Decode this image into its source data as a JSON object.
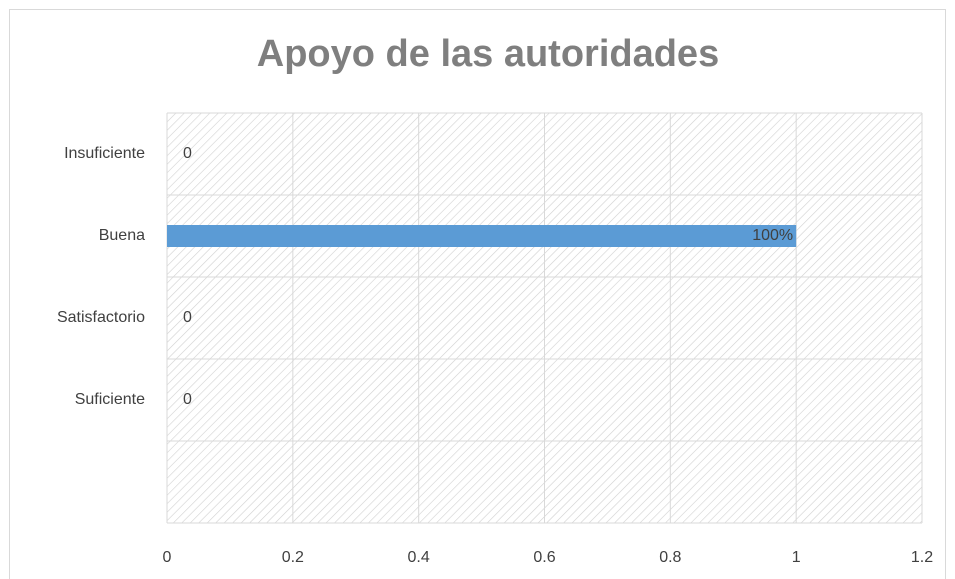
{
  "chart_data": {
    "type": "hbar",
    "title": "Apoyo de las autoridades",
    "categories": [
      "Insuficiente",
      "Buena",
      "Satisfactorio",
      "Suficiente",
      null
    ],
    "values": [
      0,
      1,
      0,
      0,
      null
    ],
    "value_labels": [
      "0",
      "100%",
      "0",
      "0",
      null
    ],
    "color": "#5b9bd5",
    "xlim": [
      0,
      1.2
    ],
    "xticks": [
      0,
      0.2,
      0.4,
      0.6,
      0.8,
      1,
      1.2
    ],
    "grid": true
  }
}
